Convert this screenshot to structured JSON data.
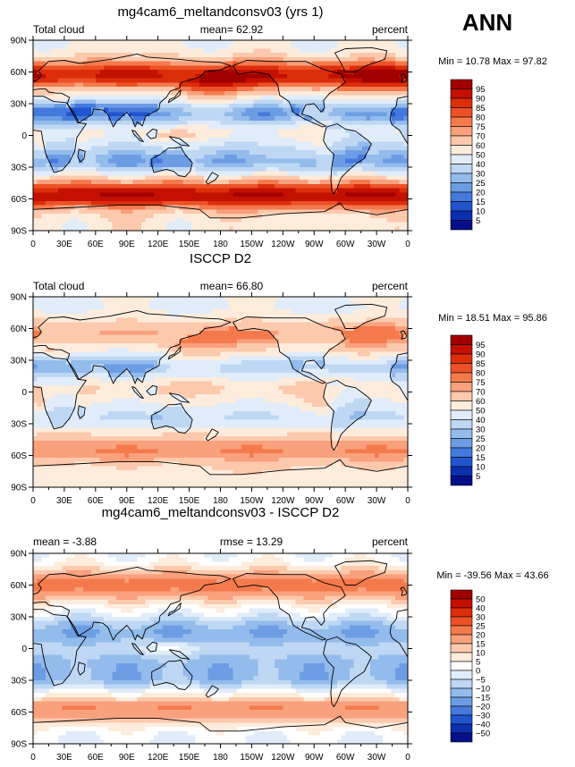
{
  "season": "ANN",
  "chart_data": [
    {
      "type": "heatmap",
      "title": "mg4cam6_meltandconsv03 (yrs 1)",
      "left_label": "Total cloud",
      "center_label": "mean=  62.92",
      "right_label": "percent",
      "minmax": "Min =  10.78 Max =  97.82",
      "x_ticks": [
        "0",
        "30E",
        "60E",
        "90E",
        "120E",
        "150E",
        "180",
        "150W",
        "120W",
        "90W",
        "60W",
        "30W",
        "0"
      ],
      "y_ticks": [
        "90N",
        "60N",
        "30N",
        "0",
        "30S",
        "60S",
        "90S"
      ],
      "xlim": [
        0,
        360
      ],
      "ylim": [
        -90,
        90
      ],
      "levels": [
        "95",
        "90",
        "85",
        "80",
        "75",
        "70",
        "60",
        "50",
        "40",
        "30",
        "25",
        "20",
        "15",
        "10",
        "5"
      ],
      "colors": [
        "#a10000",
        "#c41000",
        "#dc2e0a",
        "#ec5226",
        "#f47a4c",
        "#f9a07c",
        "#fcc9ac",
        "#fdecdc",
        "#e1ecfa",
        "#bed7f3",
        "#93bbec",
        "#6c9de4",
        "#4479dd",
        "#2155cf",
        "#0c2fb0",
        "#050f8a"
      ],
      "mean": 62.92,
      "field": "model"
    },
    {
      "type": "heatmap",
      "title": "ISCCP D2",
      "left_label": "Total cloud",
      "center_label": "mean=  66.80",
      "right_label": "percent",
      "minmax": "Min =  18.51 Max =  95.86",
      "x_ticks": [
        "0",
        "30E",
        "60E",
        "90E",
        "120E",
        "150E",
        "180",
        "150W",
        "120W",
        "90W",
        "60W",
        "30W",
        "0"
      ],
      "y_ticks": [
        "90N",
        "60N",
        "30N",
        "0",
        "30S",
        "60S",
        "90S"
      ],
      "xlim": [
        0,
        360
      ],
      "ylim": [
        -90,
        90
      ],
      "levels": [
        "95",
        "90",
        "85",
        "80",
        "75",
        "70",
        "60",
        "50",
        "40",
        "30",
        "25",
        "20",
        "15",
        "10",
        "5"
      ],
      "colors": [
        "#a10000",
        "#c41000",
        "#dc2e0a",
        "#ec5226",
        "#f47a4c",
        "#f9a07c",
        "#fcc9ac",
        "#fdecdc",
        "#e1ecfa",
        "#bed7f3",
        "#93bbec",
        "#6c9de4",
        "#4479dd",
        "#2155cf",
        "#0c2fb0",
        "#050f8a"
      ],
      "mean": 66.8,
      "field": "obs"
    },
    {
      "type": "heatmap",
      "title": "mg4cam6_meltandconsv03 - ISCCP D2",
      "left_label": "mean =  -3.88",
      "center_label": "rmse =  13.29",
      "right_label": "percent",
      "minmax": "Min = -39.56 Max =  43.66",
      "x_ticks": [
        "0",
        "30E",
        "60E",
        "90E",
        "120E",
        "150E",
        "180",
        "150W",
        "120W",
        "90W",
        "60W",
        "30W",
        "0"
      ],
      "y_ticks": [
        "90N",
        "60N",
        "30N",
        "0",
        "30S",
        "60S",
        "90S"
      ],
      "xlim": [
        0,
        360
      ],
      "ylim": [
        -90,
        90
      ],
      "levels": [
        "50",
        "40",
        "30",
        "25",
        "20",
        "15",
        "10",
        "5",
        "0",
        "−5",
        "−10",
        "−15",
        "−20",
        "−30",
        "−40",
        "−50"
      ],
      "colors": [
        "#a10000",
        "#c41000",
        "#dc2e0a",
        "#ec5226",
        "#f47a4c",
        "#f9a07c",
        "#fcc9ac",
        "#fdecdc",
        "#ffffff",
        "#e1ecfa",
        "#bed7f3",
        "#93bbec",
        "#6c9de4",
        "#4479dd",
        "#2155cf",
        "#0c2fb0",
        "#050f8a"
      ],
      "mean": -3.88,
      "field": "diff"
    }
  ]
}
